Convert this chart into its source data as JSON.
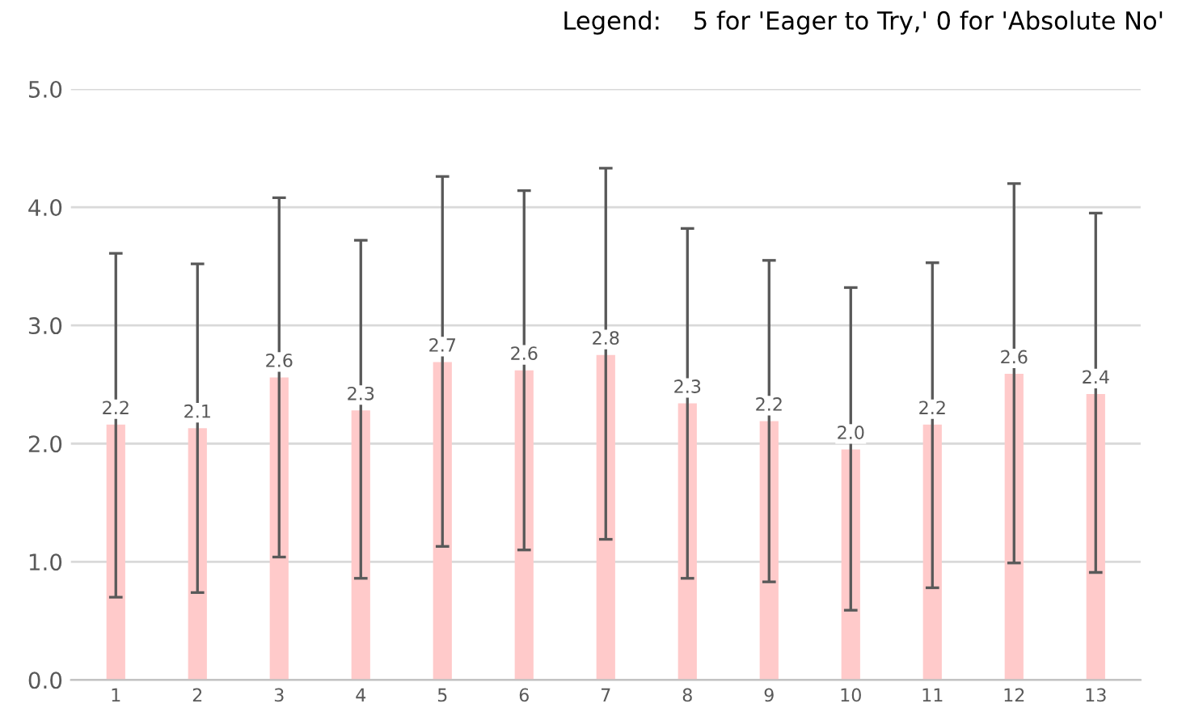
{
  "chart_data": {
    "type": "bar",
    "categories": [
      "1",
      "2",
      "3",
      "4",
      "5",
      "6",
      "7",
      "8",
      "9",
      "10",
      "11",
      "12",
      "13"
    ],
    "values": [
      2.16,
      2.13,
      2.56,
      2.28,
      2.69,
      2.62,
      2.75,
      2.34,
      2.19,
      1.95,
      2.16,
      2.59,
      2.42
    ],
    "value_labels": [
      "2.2",
      "2.1",
      "2.6",
      "2.3",
      "2.7",
      "2.6",
      "2.8",
      "2.3",
      "2.2",
      "2.0",
      "2.2",
      "2.6",
      "2.4"
    ],
    "errors": [
      [
        0.7,
        3.61
      ],
      [
        0.74,
        3.52
      ],
      [
        1.04,
        4.08
      ],
      [
        0.86,
        3.72
      ],
      [
        1.13,
        4.26
      ],
      [
        1.1,
        4.14
      ],
      [
        1.19,
        4.33
      ],
      [
        0.86,
        3.82
      ],
      [
        0.83,
        3.55
      ],
      [
        0.59,
        3.32
      ],
      [
        0.78,
        3.53
      ],
      [
        0.99,
        4.2
      ],
      [
        0.91,
        3.95
      ]
    ],
    "color": "#ffcaca",
    "ylim": [
      0,
      5
    ],
    "yticks": [
      {
        "value": 0,
        "label": "0.0"
      },
      {
        "value": 1,
        "label": "1.0"
      },
      {
        "value": 2,
        "label": "2.0"
      },
      {
        "value": 3,
        "label": "3.0"
      },
      {
        "value": 4,
        "label": "4.0"
      },
      {
        "value": 5,
        "label": "5.0"
      }
    ],
    "grid": "y",
    "annotations": [
      "Legend:    5 for 'Eager to Try,' 0 for 'Absolute No'"
    ]
  }
}
